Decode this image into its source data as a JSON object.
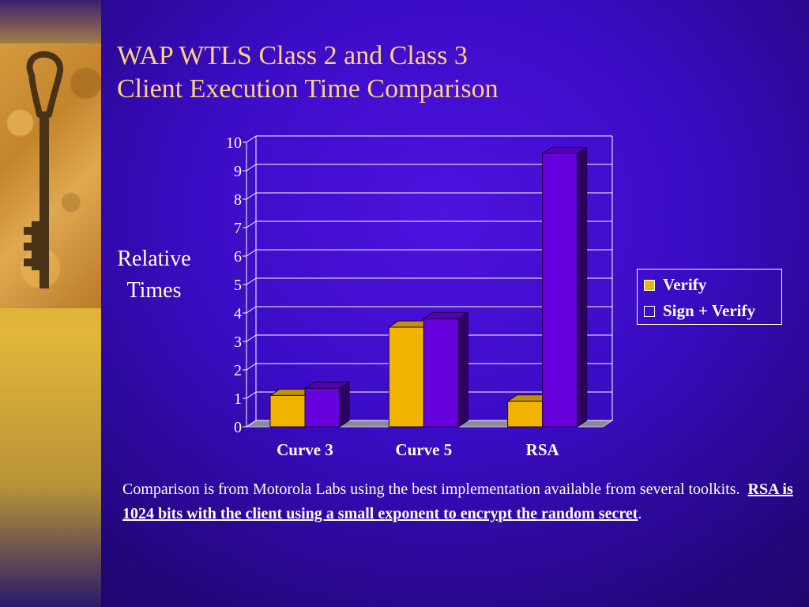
{
  "slide": {
    "title_lines": [
      "WAP WTLS Class 2 and Class 3",
      "Client Execution Time Comparison"
    ],
    "y_axis_label_lines": [
      "Relative",
      "Times"
    ],
    "footnote": {
      "text": "Comparison is from Motorola Labs using the best implementation available from several toolkits.",
      "emphasis": "RSA is 1024 bits with the client using a small exponent to encrypt the random secret",
      "trailing": "."
    },
    "colors": {
      "title": "#ffd27a",
      "text": "#ffffff"
    }
  },
  "chart_data": {
    "type": "bar",
    "style": "3d-clustered",
    "categories": [
      "Curve 3",
      "Curve 5",
      "RSA"
    ],
    "series": [
      {
        "name": "Verify",
        "values": [
          1.1,
          3.5,
          0.9
        ],
        "color": "#f0b400"
      },
      {
        "name": "Sign + Verify",
        "values": [
          1.35,
          3.8,
          9.6
        ],
        "color": "#6600dd"
      }
    ],
    "yticks": [
      "0",
      "1",
      "2",
      "3",
      "4",
      "5",
      "6",
      "7",
      "8",
      "9",
      "10"
    ],
    "ylim": [
      0,
      10
    ],
    "grid": true,
    "legend_position": "right"
  }
}
